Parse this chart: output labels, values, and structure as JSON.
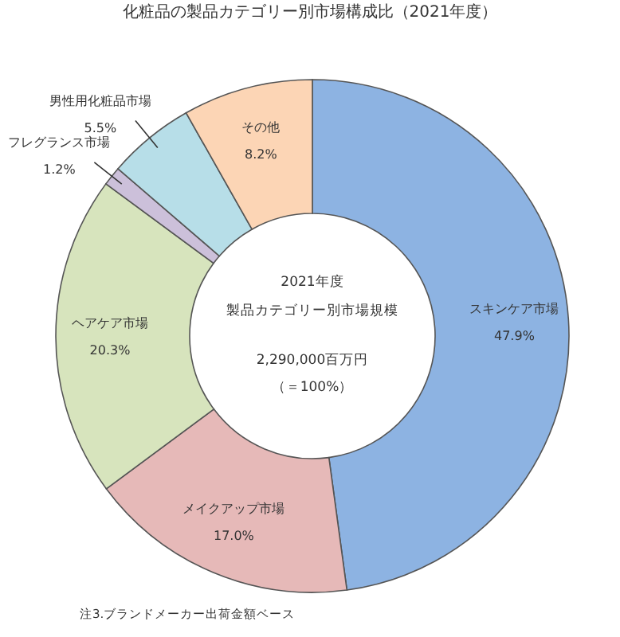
{
  "chart_data": {
    "type": "donut",
    "title": "化粧品の製品カテゴリー別市場構成比（2021年度）",
    "categories": [
      "スキンケア市場",
      "メイクアップ市場",
      "ヘアケア市場",
      "フレグランス市場",
      "男性用化粧品市場",
      "その他"
    ],
    "values": [
      47.9,
      17.0,
      20.3,
      1.2,
      5.5,
      8.2
    ],
    "value_labels": [
      "47.9%",
      "17.0%",
      "20.3%",
      "1.2%",
      "5.5%",
      "8.2%"
    ],
    "colors": [
      "#8db3e2",
      "#e6b9b8",
      "#d7e4bd",
      "#ccc0da",
      "#b7dee8",
      "#fcd5b5"
    ],
    "annotations": [
      "2021年度",
      "製品カテゴリー別市場規模",
      "2,290,000百万円",
      "（＝100%）",
      "注3.ブランドメーカー出荷金額ベース"
    ]
  }
}
